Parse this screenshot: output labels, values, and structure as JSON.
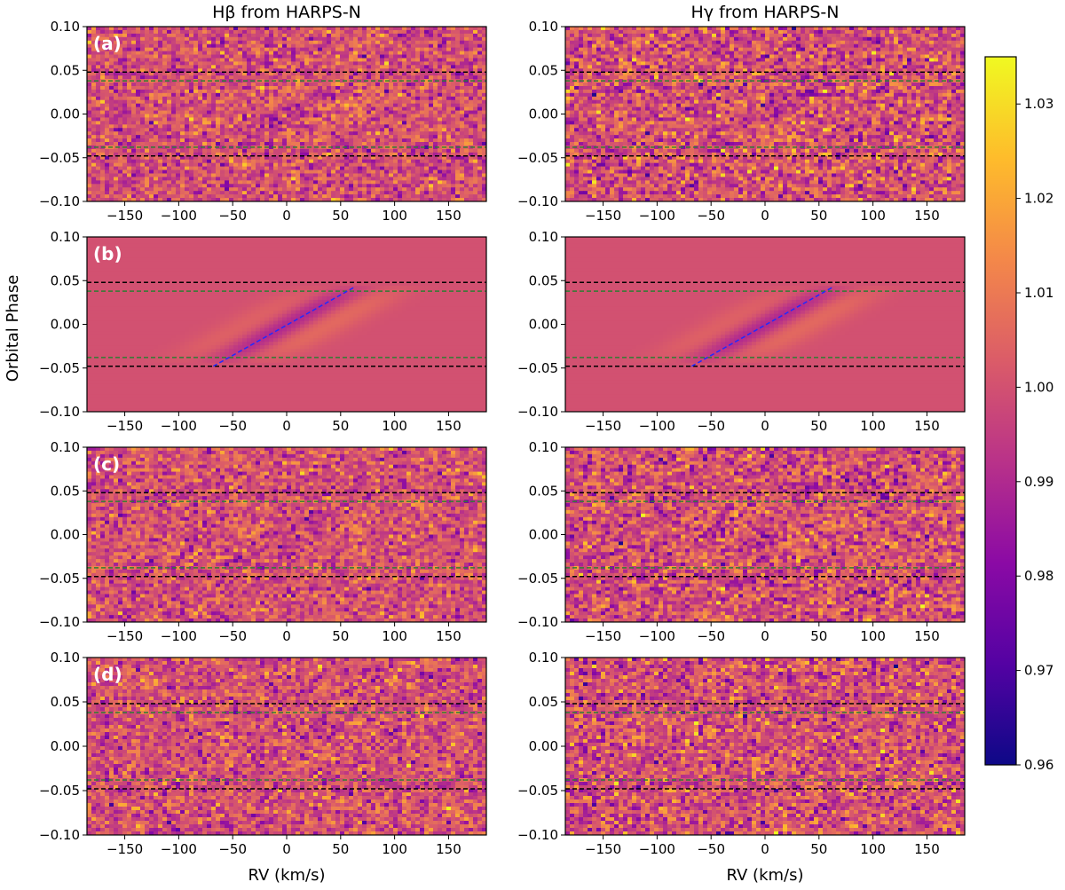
{
  "chart_data": {
    "type": "heatmap",
    "column_titles": [
      "Hβ from HARPS-N",
      "Hγ from HARPS-N"
    ],
    "ylabel": "Orbital Phase",
    "xlabel": "RV (km/s)",
    "xlim": [
      -185,
      185
    ],
    "ylim": [
      -0.1,
      0.1
    ],
    "xticks": [
      -150,
      -100,
      -50,
      0,
      50,
      100,
      150
    ],
    "yticks": [
      0.1,
      0.05,
      0.0,
      -0.05,
      -0.1
    ],
    "colorbar": {
      "min": 0.96,
      "max": 1.035,
      "ticks": [
        1.03,
        1.02,
        1.01,
        1.0,
        0.99,
        0.98,
        0.97,
        0.96
      ],
      "colormap": "plasma"
    },
    "reference_lines": {
      "black_dashed_phases": [
        0.048,
        -0.048
      ],
      "green_dashed_phases": [
        0.038,
        -0.038
      ],
      "black_color": "#000000",
      "green_color": "#2e7d32"
    },
    "model_trail": {
      "rv": [
        -68,
        62
      ],
      "phase": [
        -0.048,
        0.042
      ],
      "color": "#1f2bff"
    },
    "rows": [
      {
        "label": "(a)",
        "kind": "observed",
        "noise": 0.009,
        "signal": 0.65,
        "seed": 11
      },
      {
        "label": "(b)",
        "kind": "model",
        "noise": 0.0,
        "signal": 1.0,
        "seed": 0
      },
      {
        "label": "(c)",
        "kind": "residual",
        "noise": 0.009,
        "signal": 0.35,
        "seed": 23
      },
      {
        "label": "(d)",
        "kind": "residual",
        "noise": 0.009,
        "signal": 0.2,
        "seed": 37
      }
    ]
  }
}
